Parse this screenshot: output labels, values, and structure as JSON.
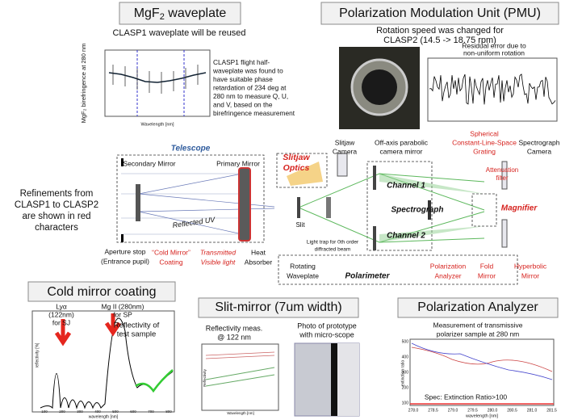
{
  "mgf2": {
    "title": [
      "MgF",
      "2",
      " waveplate"
    ],
    "subtitle": "CLASP1 waveplate will be reused",
    "note": [
      "CLASP1 flight half-",
      "waveplate was found to",
      "have suitable phase",
      "retardation of 234 deg at",
      "280 nm to measure Q, U,",
      "and V, based on the",
      "birefringence measurement"
    ],
    "ylabel": "MgF₂ birefringence at 280 nm",
    "xlabel": "Wavelength [nm]"
  },
  "pmu": {
    "title": "Polarization Modulation Unit (PMU)",
    "subtitle": [
      "Rotation speed was changed for",
      "CLASP2 (14.5 -> 18.75 rpm)"
    ],
    "inset": [
      "Residual error due to",
      "non-uniform rotation"
    ]
  },
  "diagram": {
    "telescope": "Telescope",
    "secondary": "Secondary Mirror",
    "primary": "Primary Mirror",
    "refinements": [
      "Refinements from",
      "CLASP1 to CLASP2",
      "are shown in red",
      "characters"
    ],
    "reflected": "Reflected UV",
    "aperture": [
      "Aperture stop",
      "(Entrance pupil)"
    ],
    "cold_mirror": [
      "“Cold Mirror”",
      "Coating"
    ],
    "transmitted": [
      "Transmitted",
      "Visible light"
    ],
    "heat": [
      "Heat",
      "Absorber"
    ],
    "waveplate": [
      "Rotating",
      "Waveplate"
    ],
    "slitjaw_optics": [
      "Slitjaw",
      "Optics"
    ],
    "slitjaw_camera": [
      "Slitjaw",
      "Camera"
    ],
    "offaxis": [
      "Off-axis parabolic",
      "camera mirror"
    ],
    "grating": [
      "Spherical",
      "Constant-Line-Space",
      "Grating"
    ],
    "spec_camera": [
      "Spectrograph",
      "Camera"
    ],
    "attenuation": [
      "Attenuation",
      "filter"
    ],
    "magnifier": "Magnifier",
    "channel1": "Channel 1",
    "spectrograph": "Spectrograph",
    "channel2": "Channel 2",
    "slit": "Slit",
    "light_trap": [
      "Light trap for 0th order",
      "diffracted beam"
    ],
    "analyzer": [
      "Polarization",
      "Analyzer"
    ],
    "fold": [
      "Fold",
      "Mirror"
    ],
    "hyperbolic": [
      "Hyperbolic",
      "Mirror"
    ],
    "polarimeter": "Polarimeter"
  },
  "cold": {
    "title": "Cold mirror coating",
    "lya": [
      "Lyα",
      "(122nm)",
      "for SJ"
    ],
    "mg": [
      "Mg II (280nm)",
      "for SP"
    ],
    "sample": [
      "Reflectivity of",
      "test sample"
    ],
    "ylabel": "reflectivity [%]",
    "xlabel": "wavelength [nm]",
    "xticks": [
      "100",
      "200",
      "300",
      "400",
      "500",
      "600",
      "700",
      "800"
    ]
  },
  "slitmirror": {
    "title": "Slit-mirror (7um width)",
    "meas": [
      "Reflectivity meas.",
      "@ 122 nm"
    ],
    "photo": [
      "Photo of prototype",
      "with micro-scope"
    ],
    "xlabel": "Wavelength [nm]",
    "ylabel": "Reflectivity"
  },
  "analyzer": {
    "title": "Polarization Analyzer",
    "subtitle": [
      "Measurement of transmissive",
      "polarizer sample at 280 nm"
    ],
    "spec": "Spec: Extinction Ratio>100",
    "xlabel": "wavelength [nm]",
    "ylabel": "extinction ratio",
    "xticks": [
      "278.0",
      "278.5",
      "279.0",
      "279.5",
      "280.0",
      "280.5",
      "281.0",
      "281.5"
    ],
    "yticks": [
      "500",
      "400",
      "300",
      "200",
      "100"
    ]
  }
}
